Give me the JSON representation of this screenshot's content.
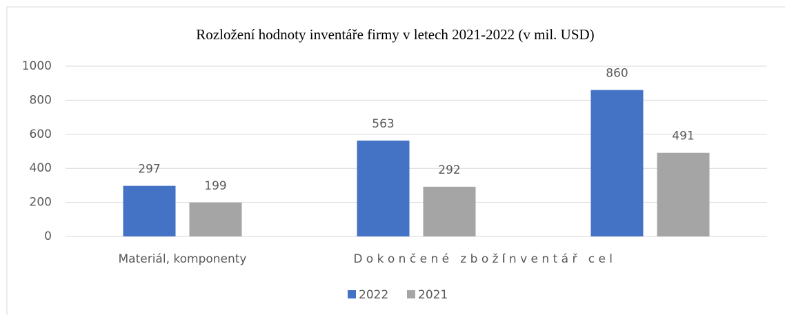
{
  "chart_data": {
    "type": "bar",
    "title": "Rozložení hodnoty inventáře firmy v letech 2021-2022 (v mil. USD)",
    "categories": [
      "Materiál, komponenty",
      "D o k o n č e n é   z b o ž í",
      "I n v e n t á ř   c e l"
    ],
    "series": [
      {
        "name": "2022",
        "color": "#4472c4",
        "values": [
          297,
          563,
          860
        ]
      },
      {
        "name": "2021",
        "color": "#a5a5a5",
        "values": [
          199,
          292,
          491
        ]
      }
    ],
    "ylim": [
      0,
      1000
    ],
    "yticks": [
      0,
      200,
      400,
      600,
      800,
      1000
    ],
    "grid": true,
    "legend": "bottom"
  }
}
